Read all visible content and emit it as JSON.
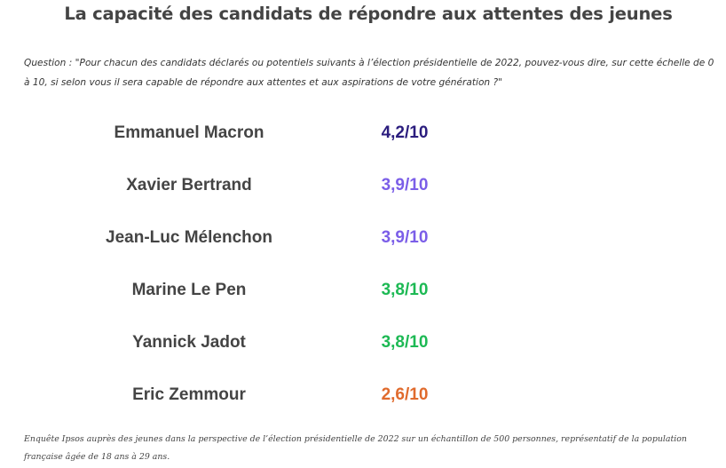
{
  "chart_data": {
    "type": "table",
    "title": "La capacité des candidats de répondre aux attentes des jeunes",
    "question": "Question : \"Pour chacun des candidats déclarés ou potentiels suivants à l’élection présidentielle de 2022, pouvez-vous dire, sur cette échelle de 0 à 10, si selon vous il sera capable de répondre aux attentes et aux aspirations de votre génération ?\"",
    "scale_max": 10,
    "categories": [
      "Emmanuel Macron",
      "Xavier Bertrand",
      "Jean-Luc Mélenchon",
      "Marine Le Pen",
      "Yannick Jadot",
      "Eric Zemmour"
    ],
    "values": [
      4.2,
      3.9,
      3.9,
      3.8,
      3.8,
      2.6
    ],
    "rows": [
      {
        "name": "Emmanuel Macron",
        "value": 4.2,
        "label": "4,2/10",
        "color": "#2b1d7e"
      },
      {
        "name": "Xavier Bertrand",
        "value": 3.9,
        "label": "3,9/10",
        "color": "#7b5ee8"
      },
      {
        "name": "Jean-Luc Mélenchon",
        "value": 3.9,
        "label": "3,9/10",
        "color": "#7b5ee8"
      },
      {
        "name": "Marine Le Pen",
        "value": 3.8,
        "label": "3,8/10",
        "color": "#1db954"
      },
      {
        "name": "Yannick Jadot",
        "value": 3.8,
        "label": "3,8/10",
        "color": "#1db954"
      },
      {
        "name": "Eric Zemmour",
        "value": 2.6,
        "label": "2,6/10",
        "color": "#e06a2c"
      }
    ],
    "source": "Enquête Ipsos auprès des jeunes dans la perspective de l’élection présidentielle de 2022 sur un échantillon de 500 personnes, représentatif de la population française âgée de 18 ans à 29 ans."
  }
}
